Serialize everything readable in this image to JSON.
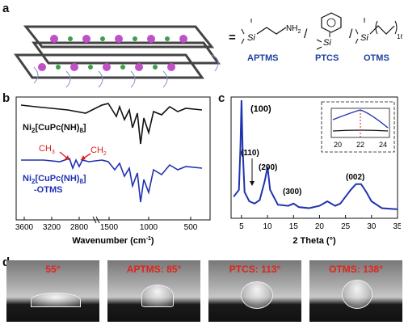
{
  "panels": {
    "a": "a",
    "b": "b",
    "c": "c",
    "d": "d"
  },
  "panel_a": {
    "equals": "=",
    "separators": [
      "/",
      "/"
    ],
    "molecules": [
      {
        "name": "APTMS",
        "group": "NH2",
        "group_main": "NH",
        "group_sub": "2"
      },
      {
        "name": "PTCS"
      },
      {
        "name": "OTMS",
        "subscript": "16"
      }
    ]
  },
  "panel_b": {
    "label1_main": "Ni",
    "label1_sub1": "2",
    "label1_mid": "[CuPc(NH)",
    "label1_sub2": "8",
    "label1_end": "]",
    "label2_main": "Ni",
    "label2_sub1": "2",
    "label2_mid": "[CuPc(NH)",
    "label2_sub2": "8",
    "label2_end": "]",
    "label2_line2": "-OTMS",
    "ch3": "CH",
    "ch3_sub": "3",
    "ch2": "CH",
    "ch2_sub": "2",
    "xlabel": "Wavenumber (cm",
    "xlabel_sup": "-1",
    "xlabel_end": ")",
    "ticks_left": [
      "3600",
      "3200",
      "2800"
    ],
    "ticks_right": [
      "1500",
      "1000",
      "500"
    ],
    "colors": {
      "top": "#111111",
      "bottom": "#1f33b0",
      "arrow": "#d8231c"
    }
  },
  "chart_data": {
    "type": "line",
    "xlabel": "2 Theta (°)",
    "xlim": [
      3,
      35
    ],
    "xticks": [
      5,
      10,
      15,
      20,
      25,
      30,
      35
    ],
    "annotations": [
      "(100)",
      "(110)",
      "(200)",
      "(300)",
      "(002)"
    ],
    "inset": {
      "xticks": [
        20,
        22,
        24
      ]
    },
    "series": [
      {
        "color": "#1f33b0",
        "x": [
          3.5,
          4.5,
          4.8,
          5.0,
          5.2,
          5.6,
          6.5,
          7.5,
          8.5,
          9.5,
          10.0,
          10.5,
          12,
          14,
          15,
          16,
          18,
          20,
          21.5,
          23,
          24,
          25,
          26,
          27,
          28,
          29,
          30,
          32,
          35
        ],
        "y": [
          0.16,
          0.22,
          0.6,
          1.0,
          0.6,
          0.2,
          0.12,
          0.1,
          0.13,
          0.3,
          0.42,
          0.22,
          0.09,
          0.08,
          0.1,
          0.07,
          0.06,
          0.08,
          0.12,
          0.08,
          0.1,
          0.16,
          0.22,
          0.27,
          0.27,
          0.2,
          0.12,
          0.06,
          0.05
        ]
      }
    ]
  },
  "panel_d": {
    "photos": [
      {
        "label": "55°"
      },
      {
        "label": "APTMS: 85°"
      },
      {
        "label": "PTCS: 113°"
      },
      {
        "label": "OTMS: 138°"
      }
    ]
  }
}
